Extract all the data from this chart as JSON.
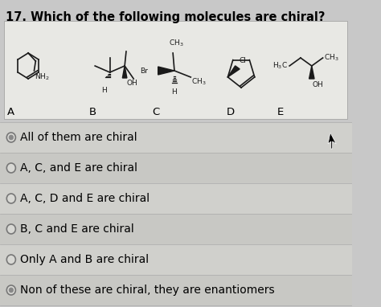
{
  "title": "17. Which of the following molecules are chiral?",
  "title_fontsize": 10.5,
  "bg_color": "#c8c8c8",
  "panel_bg": "#e8e8e4",
  "options": [
    "All of them are chiral",
    "A, C, and E are chiral",
    "A, C, D and E are chiral",
    "B, C and E are chiral",
    "Only A and B are chiral",
    "Non of these are chiral, they are enantiomers"
  ],
  "option_fontsize": 10,
  "molecule_labels": [
    "A",
    "B",
    "C",
    "D",
    "E"
  ],
  "label_fontsize": 9.5,
  "sep_color": "#aaaaaa",
  "radio_color": "#777777",
  "mol_color": "#1a1a1a"
}
